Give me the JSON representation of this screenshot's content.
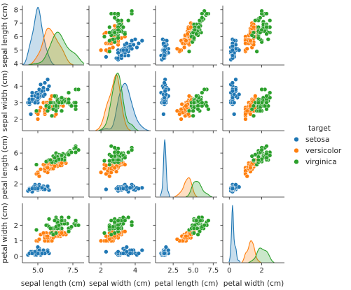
{
  "chart_data": {
    "type": "scatter",
    "subtype": "pairplot",
    "variables": [
      "sepal length (cm)",
      "sepal width (cm)",
      "petal length (cm)",
      "petal width (cm)"
    ],
    "diag_kind": "kde",
    "grid": false,
    "legend": {
      "title": "target",
      "placement": "right",
      "entries": [
        "setosa",
        "versicolor",
        "virginica"
      ]
    },
    "series": [
      {
        "name": "setosa",
        "color": "#1f77b4",
        "points": [
          [
            5.1,
            3.5,
            1.4,
            0.2
          ],
          [
            4.9,
            3.0,
            1.4,
            0.2
          ],
          [
            4.7,
            3.2,
            1.3,
            0.2
          ],
          [
            4.6,
            3.1,
            1.5,
            0.2
          ],
          [
            5.0,
            3.6,
            1.4,
            0.2
          ],
          [
            5.4,
            3.9,
            1.7,
            0.4
          ],
          [
            4.6,
            3.4,
            1.4,
            0.3
          ],
          [
            5.0,
            3.4,
            1.5,
            0.2
          ],
          [
            4.4,
            2.9,
            1.4,
            0.2
          ],
          [
            4.9,
            3.1,
            1.5,
            0.1
          ],
          [
            5.4,
            3.7,
            1.5,
            0.2
          ],
          [
            4.8,
            3.4,
            1.6,
            0.2
          ],
          [
            4.8,
            3.0,
            1.4,
            0.1
          ],
          [
            4.3,
            3.0,
            1.1,
            0.1
          ],
          [
            5.8,
            4.0,
            1.2,
            0.2
          ],
          [
            5.7,
            4.4,
            1.5,
            0.4
          ],
          [
            5.4,
            3.9,
            1.3,
            0.4
          ],
          [
            5.1,
            3.5,
            1.4,
            0.3
          ],
          [
            5.7,
            3.8,
            1.7,
            0.3
          ],
          [
            5.1,
            3.8,
            1.5,
            0.3
          ],
          [
            5.4,
            3.4,
            1.7,
            0.2
          ],
          [
            5.1,
            3.7,
            1.5,
            0.4
          ],
          [
            4.6,
            3.6,
            1.0,
            0.2
          ],
          [
            5.1,
            3.3,
            1.7,
            0.5
          ],
          [
            4.8,
            3.4,
            1.9,
            0.2
          ],
          [
            5.0,
            3.0,
            1.6,
            0.2
          ],
          [
            5.0,
            3.4,
            1.6,
            0.4
          ],
          [
            5.2,
            3.5,
            1.5,
            0.2
          ],
          [
            5.2,
            3.4,
            1.4,
            0.2
          ],
          [
            4.7,
            3.2,
            1.6,
            0.2
          ],
          [
            4.8,
            3.1,
            1.6,
            0.2
          ],
          [
            5.4,
            3.4,
            1.5,
            0.4
          ],
          [
            5.2,
            4.1,
            1.5,
            0.1
          ],
          [
            5.5,
            4.2,
            1.4,
            0.2
          ],
          [
            4.9,
            3.1,
            1.5,
            0.2
          ],
          [
            5.0,
            3.2,
            1.2,
            0.2
          ],
          [
            5.5,
            3.5,
            1.3,
            0.2
          ],
          [
            4.9,
            3.6,
            1.4,
            0.1
          ],
          [
            4.4,
            3.0,
            1.3,
            0.2
          ],
          [
            5.1,
            3.4,
            1.5,
            0.2
          ],
          [
            5.0,
            3.5,
            1.3,
            0.3
          ],
          [
            4.5,
            2.3,
            1.3,
            0.3
          ],
          [
            4.4,
            3.2,
            1.3,
            0.2
          ],
          [
            5.0,
            3.5,
            1.6,
            0.6
          ],
          [
            5.1,
            3.8,
            1.9,
            0.4
          ],
          [
            4.8,
            3.0,
            1.4,
            0.3
          ],
          [
            5.1,
            3.8,
            1.6,
            0.2
          ],
          [
            4.6,
            3.2,
            1.4,
            0.2
          ],
          [
            5.3,
            3.7,
            1.5,
            0.2
          ],
          [
            5.0,
            3.3,
            1.4,
            0.2
          ]
        ]
      },
      {
        "name": "versicolor",
        "color": "#ff7f0e",
        "points": [
          [
            7.0,
            3.2,
            4.7,
            1.4
          ],
          [
            6.4,
            3.2,
            4.5,
            1.5
          ],
          [
            6.9,
            3.1,
            4.9,
            1.5
          ],
          [
            5.5,
            2.3,
            4.0,
            1.3
          ],
          [
            6.5,
            2.8,
            4.6,
            1.5
          ],
          [
            5.7,
            2.8,
            4.5,
            1.3
          ],
          [
            6.3,
            3.3,
            4.7,
            1.6
          ],
          [
            4.9,
            2.4,
            3.3,
            1.0
          ],
          [
            6.6,
            2.9,
            4.6,
            1.3
          ],
          [
            5.2,
            2.7,
            3.9,
            1.4
          ],
          [
            5.0,
            2.0,
            3.5,
            1.0
          ],
          [
            5.9,
            3.0,
            4.2,
            1.5
          ],
          [
            6.0,
            2.2,
            4.0,
            1.0
          ],
          [
            6.1,
            2.9,
            4.7,
            1.4
          ],
          [
            5.6,
            2.9,
            3.6,
            1.3
          ],
          [
            6.7,
            3.1,
            4.4,
            1.4
          ],
          [
            5.6,
            3.0,
            4.5,
            1.5
          ],
          [
            5.8,
            2.7,
            4.1,
            1.0
          ],
          [
            6.2,
            2.2,
            4.5,
            1.5
          ],
          [
            5.6,
            2.5,
            3.9,
            1.1
          ],
          [
            5.9,
            3.2,
            4.8,
            1.8
          ],
          [
            6.1,
            2.8,
            4.0,
            1.3
          ],
          [
            6.3,
            2.5,
            4.9,
            1.5
          ],
          [
            6.1,
            2.8,
            4.7,
            1.2
          ],
          [
            6.4,
            2.9,
            4.3,
            1.3
          ],
          [
            6.6,
            3.0,
            4.4,
            1.4
          ],
          [
            6.8,
            2.8,
            4.8,
            1.4
          ],
          [
            6.7,
            3.0,
            5.0,
            1.7
          ],
          [
            6.0,
            2.9,
            4.5,
            1.5
          ],
          [
            5.7,
            2.6,
            3.5,
            1.0
          ],
          [
            5.5,
            2.4,
            3.8,
            1.1
          ],
          [
            5.5,
            2.4,
            3.7,
            1.0
          ],
          [
            5.8,
            2.7,
            3.9,
            1.2
          ],
          [
            6.0,
            2.7,
            5.1,
            1.6
          ],
          [
            5.4,
            3.0,
            4.5,
            1.5
          ],
          [
            6.0,
            3.4,
            4.5,
            1.6
          ],
          [
            6.7,
            3.1,
            4.7,
            1.5
          ],
          [
            6.3,
            2.3,
            4.4,
            1.3
          ],
          [
            5.6,
            3.0,
            4.1,
            1.3
          ],
          [
            5.5,
            2.5,
            4.0,
            1.3
          ],
          [
            5.5,
            2.6,
            4.4,
            1.2
          ],
          [
            6.1,
            3.0,
            4.6,
            1.4
          ],
          [
            5.8,
            2.6,
            4.0,
            1.2
          ],
          [
            5.0,
            2.3,
            3.3,
            1.0
          ],
          [
            5.6,
            2.7,
            4.2,
            1.3
          ],
          [
            5.7,
            3.0,
            4.2,
            1.2
          ],
          [
            5.7,
            2.9,
            4.2,
            1.3
          ],
          [
            6.2,
            2.9,
            4.3,
            1.3
          ],
          [
            5.1,
            2.5,
            3.0,
            1.1
          ],
          [
            5.7,
            2.8,
            4.1,
            1.3
          ]
        ]
      },
      {
        "name": "virginica",
        "color": "#2ca02c",
        "points": [
          [
            6.3,
            3.3,
            6.0,
            2.5
          ],
          [
            5.8,
            2.7,
            5.1,
            1.9
          ],
          [
            7.1,
            3.0,
            5.9,
            2.1
          ],
          [
            6.3,
            2.9,
            5.6,
            1.8
          ],
          [
            6.5,
            3.0,
            5.8,
            2.2
          ],
          [
            7.6,
            3.0,
            6.6,
            2.1
          ],
          [
            4.9,
            2.5,
            4.5,
            1.7
          ],
          [
            7.3,
            2.9,
            6.3,
            1.8
          ],
          [
            6.7,
            2.5,
            5.8,
            1.8
          ],
          [
            7.2,
            3.6,
            6.1,
            2.5
          ],
          [
            6.5,
            3.2,
            5.1,
            2.0
          ],
          [
            6.4,
            2.7,
            5.3,
            1.9
          ],
          [
            6.8,
            3.0,
            5.5,
            2.1
          ],
          [
            5.7,
            2.5,
            5.0,
            2.0
          ],
          [
            5.8,
            2.8,
            5.1,
            2.4
          ],
          [
            6.4,
            3.2,
            5.3,
            2.3
          ],
          [
            6.5,
            3.0,
            5.5,
            1.8
          ],
          [
            7.7,
            3.8,
            6.7,
            2.2
          ],
          [
            7.7,
            2.6,
            6.9,
            2.3
          ],
          [
            6.0,
            2.2,
            5.0,
            1.5
          ],
          [
            6.9,
            3.2,
            5.7,
            2.3
          ],
          [
            5.6,
            2.8,
            4.9,
            2.0
          ],
          [
            7.7,
            2.8,
            6.7,
            2.0
          ],
          [
            6.3,
            2.7,
            4.9,
            1.8
          ],
          [
            6.7,
            3.3,
            5.7,
            2.1
          ],
          [
            7.2,
            3.2,
            6.0,
            1.8
          ],
          [
            6.2,
            2.8,
            4.8,
            1.8
          ],
          [
            6.1,
            3.0,
            4.9,
            1.8
          ],
          [
            6.4,
            2.8,
            5.6,
            2.1
          ],
          [
            7.2,
            3.0,
            5.8,
            1.6
          ],
          [
            7.4,
            2.8,
            6.1,
            1.9
          ],
          [
            7.9,
            3.8,
            6.4,
            2.0
          ],
          [
            6.4,
            2.8,
            5.6,
            2.2
          ],
          [
            6.3,
            2.8,
            5.1,
            1.5
          ],
          [
            6.1,
            2.6,
            5.6,
            1.4
          ],
          [
            7.7,
            3.0,
            6.1,
            2.3
          ],
          [
            6.3,
            3.4,
            5.6,
            2.4
          ],
          [
            6.4,
            3.1,
            5.5,
            1.8
          ],
          [
            6.0,
            3.0,
            4.8,
            1.8
          ],
          [
            6.9,
            3.1,
            5.4,
            2.1
          ],
          [
            6.7,
            3.1,
            5.6,
            2.4
          ],
          [
            6.9,
            3.1,
            5.1,
            2.3
          ],
          [
            5.8,
            2.7,
            5.1,
            1.9
          ],
          [
            6.8,
            3.2,
            5.9,
            2.3
          ],
          [
            6.7,
            3.3,
            5.7,
            2.5
          ],
          [
            6.7,
            3.0,
            5.2,
            2.3
          ],
          [
            6.3,
            2.5,
            5.0,
            1.9
          ],
          [
            6.5,
            3.0,
            5.2,
            2.0
          ],
          [
            6.2,
            3.4,
            5.4,
            2.3
          ],
          [
            5.9,
            3.0,
            5.1,
            1.8
          ]
        ]
      }
    ],
    "axes": [
      {
        "label": "sepal length (cm)",
        "range": [
          3.9,
          8.3
        ],
        "ticks": [
          5.0,
          7.5
        ],
        "tick_labels": [
          "5.0",
          "7.5"
        ],
        "row_ticks": [
          4,
          5,
          6,
          7,
          8
        ],
        "row_tick_labels": [
          "4",
          "5",
          "6",
          "7",
          "8"
        ]
      },
      {
        "label": "sepal width (cm)",
        "range": [
          1.3,
          4.9
        ],
        "ticks": [
          2,
          4
        ],
        "tick_labels": [
          "2",
          "4"
        ],
        "row_ticks": [
          2,
          3,
          4
        ],
        "row_tick_labels": [
          "2",
          "3",
          "4"
        ]
      },
      {
        "label": "petal length (cm)",
        "range": [
          0.3,
          8.0
        ],
        "ticks": [
          2.5,
          5.0,
          7.5
        ],
        "tick_labels": [
          "2.5",
          "5.0",
          "7.5"
        ],
        "row_ticks": [
          2,
          4,
          6
        ],
        "row_tick_labels": [
          "2",
          "4",
          "6"
        ]
      },
      {
        "label": "petal width (cm)",
        "range": [
          -0.4,
          3.4
        ],
        "ticks": [
          0,
          2
        ],
        "tick_labels": [
          "0",
          "2"
        ],
        "row_ticks": [
          0,
          1,
          2
        ],
        "row_tick_labels": [
          "0",
          "1",
          "2"
        ]
      }
    ]
  }
}
